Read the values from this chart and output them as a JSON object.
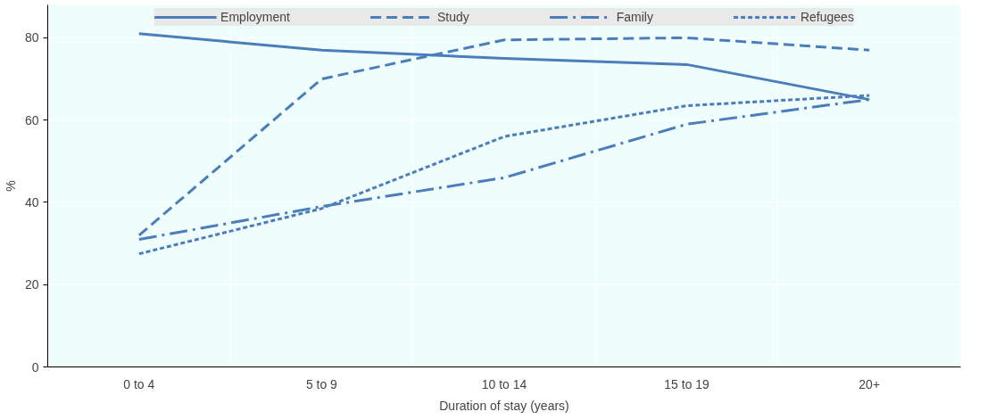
{
  "chart_data": {
    "type": "line",
    "ylabel": "%",
    "xlabel": "Duration of stay (years)",
    "categories": [
      "0 to 4",
      "5 to 9",
      "10 to 14",
      "15 to 19",
      "20+"
    ],
    "ylim": [
      0,
      88
    ],
    "yticks": [
      0,
      20,
      40,
      60,
      80
    ],
    "grid": true,
    "legend": "top",
    "series": [
      {
        "name": "Employment",
        "color": "#4a7ebb",
        "line_style": "solid",
        "values": [
          81,
          77,
          75,
          73.5,
          65
        ]
      },
      {
        "name": "Study",
        "color": "#4a7ebb",
        "line_style": "dashed",
        "values": [
          32,
          70,
          79.5,
          80,
          77
        ]
      },
      {
        "name": "Family",
        "color": "#4a7ebb",
        "line_style": "dashdot",
        "values": [
          31,
          39,
          46,
          59,
          65
        ]
      },
      {
        "name": "Refugees",
        "color": "#4a7ebb",
        "line_style": "dotted",
        "values": [
          27.5,
          38.5,
          56,
          63.5,
          66
        ]
      }
    ]
  }
}
